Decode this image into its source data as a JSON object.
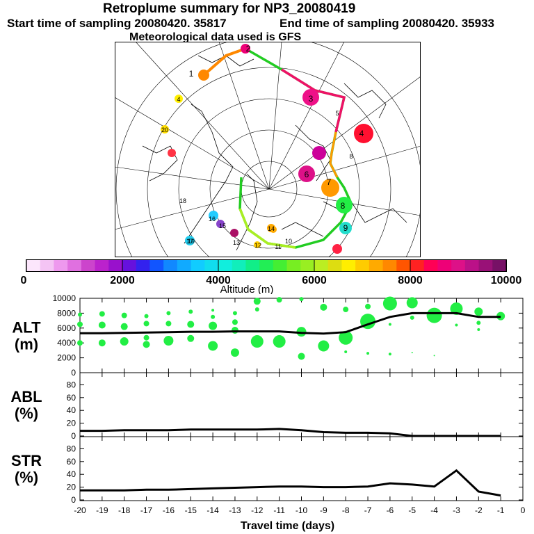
{
  "header": {
    "title": "Retroplume summary for NP3_20080419",
    "start_label": "Start time of sampling 20080420. 35817",
    "end_label": "End time of sampling 20080420. 35933",
    "met_label": "Meteorological data used is GFS"
  },
  "chart_data": [
    {
      "type": "scatter",
      "title": "Retroplume trajectory map (polar stereographic)",
      "path_points": [
        {
          "day": 1,
          "color": "#ff8800"
        },
        {
          "day": 2,
          "color": "#ee0077"
        },
        {
          "day": 3,
          "color": "#ee1188"
        },
        {
          "day": 4,
          "color": "#ff1030"
        },
        {
          "day": 5,
          "color": "#cc0099"
        },
        {
          "day": 6,
          "color": "#dd1188"
        },
        {
          "day": 7,
          "color": "#ff9900"
        },
        {
          "day": 8,
          "color": "#22ee44"
        },
        {
          "day": 9,
          "color": "#22ddcc"
        },
        {
          "day": 10,
          "color": "#ff2244"
        },
        {
          "day": 11,
          "color": "#ffaa00"
        },
        {
          "day": 12,
          "color": "#ffcc00"
        },
        {
          "day": 13,
          "color": "#aa1166"
        },
        {
          "day": 14,
          "color": "#ffaa00"
        },
        {
          "day": 15,
          "color": "#8844cc"
        },
        {
          "day": 16,
          "color": "#22ccff"
        },
        {
          "day": 17,
          "color": "#22ccee"
        },
        {
          "day": 18,
          "color": "#ff3344"
        },
        {
          "day": 19,
          "color": "#ffdd00"
        },
        {
          "day": 20,
          "color": "#ffee00"
        }
      ],
      "path_labels": [
        "1",
        "2",
        "3",
        "4",
        "6",
        "7",
        "8",
        "9",
        "10",
        "11",
        "12",
        "13",
        "14",
        "15",
        "16",
        "17",
        "18",
        "19",
        "20",
        "4",
        "5",
        "8"
      ]
    },
    {
      "type": "heatmap",
      "title": "Altitude (m) color scale",
      "colors": [
        "#fce6fc",
        "#f4c4f4",
        "#ee99ee",
        "#e070e0",
        "#cc44cc",
        "#bb22cc",
        "#9911cc",
        "#6611dd",
        "#3322ee",
        "#1155ff",
        "#1188ff",
        "#11aaff",
        "#11ccff",
        "#11ddee",
        "#11eedd",
        "#11eebb",
        "#11ee88",
        "#22ee55",
        "#44ee33",
        "#77ee22",
        "#99ee22",
        "#bbee22",
        "#dddd11",
        "#ffee00",
        "#ffcc00",
        "#ffaa00",
        "#ff8800",
        "#ff5500",
        "#ff2222",
        "#ff0055",
        "#ee0077",
        "#dd1188",
        "#bb1188",
        "#991177",
        "#771166"
      ],
      "range": [
        0,
        10000
      ],
      "tick_labels": [
        "0",
        "2000",
        "4000",
        "6000",
        "8000",
        "10000"
      ],
      "xlabel": "Altitude (m)"
    },
    {
      "type": "line",
      "ylabel_lines": [
        "ALT",
        "(m)"
      ],
      "ylim": [
        0,
        10000
      ],
      "yticks": [
        "0",
        "2000",
        "4000",
        "6000",
        "8000",
        "10000"
      ],
      "x": [
        -20,
        -19,
        -18,
        -17,
        -16,
        -15,
        -14,
        -13,
        -12,
        -11,
        -10,
        -9,
        -8,
        -7,
        -6,
        -5,
        -4,
        -3,
        -2,
        -1
      ],
      "values": [
        5300,
        5300,
        5350,
        5400,
        5450,
        5500,
        5500,
        5550,
        5550,
        5550,
        5350,
        5250,
        5450,
        6500,
        7500,
        8000,
        8000,
        8000,
        7500,
        7500
      ],
      "points": [
        {
          "x": -20,
          "y": 7800,
          "s": 3
        },
        {
          "x": -20,
          "y": 6500,
          "s": 4
        },
        {
          "x": -20,
          "y": 4000,
          "s": 4
        },
        {
          "x": -19,
          "y": 7900,
          "s": 4
        },
        {
          "x": -19,
          "y": 6400,
          "s": 5
        },
        {
          "x": -19,
          "y": 4000,
          "s": 5
        },
        {
          "x": -18,
          "y": 7700,
          "s": 4
        },
        {
          "x": -18,
          "y": 6200,
          "s": 5
        },
        {
          "x": -18,
          "y": 4200,
          "s": 6
        },
        {
          "x": -17,
          "y": 7600,
          "s": 3
        },
        {
          "x": -17,
          "y": 6600,
          "s": 4
        },
        {
          "x": -17,
          "y": 4700,
          "s": 4
        },
        {
          "x": -17,
          "y": 3800,
          "s": 5
        },
        {
          "x": -16,
          "y": 8000,
          "s": 3
        },
        {
          "x": -16,
          "y": 6600,
          "s": 4
        },
        {
          "x": -16,
          "y": 4300,
          "s": 7
        },
        {
          "x": -15,
          "y": 8200,
          "s": 3
        },
        {
          "x": -15,
          "y": 6500,
          "s": 5
        },
        {
          "x": -15,
          "y": 4600,
          "s": 5
        },
        {
          "x": -14,
          "y": 8400,
          "s": 2
        },
        {
          "x": -14,
          "y": 7500,
          "s": 3
        },
        {
          "x": -14,
          "y": 6300,
          "s": 6
        },
        {
          "x": -14,
          "y": 3600,
          "s": 7
        },
        {
          "x": -13,
          "y": 8000,
          "s": 3
        },
        {
          "x": -13,
          "y": 6800,
          "s": 4
        },
        {
          "x": -13,
          "y": 5700,
          "s": 5
        },
        {
          "x": -13,
          "y": 2700,
          "s": 6
        },
        {
          "x": -12,
          "y": 9600,
          "s": 5
        },
        {
          "x": -12,
          "y": 8500,
          "s": 3
        },
        {
          "x": -12,
          "y": 4200,
          "s": 9
        },
        {
          "x": -11,
          "y": 9800,
          "s": 4
        },
        {
          "x": -11,
          "y": 4200,
          "s": 9
        },
        {
          "x": -10,
          "y": 9900,
          "s": 3
        },
        {
          "x": -10,
          "y": 5500,
          "s": 7
        },
        {
          "x": -10,
          "y": 2200,
          "s": 5
        },
        {
          "x": -9,
          "y": 8800,
          "s": 5
        },
        {
          "x": -9,
          "y": 3600,
          "s": 8
        },
        {
          "x": -8,
          "y": 8500,
          "s": 4
        },
        {
          "x": -8,
          "y": 4700,
          "s": 10
        },
        {
          "x": -8,
          "y": 2800,
          "s": 2
        },
        {
          "x": -7,
          "y": 8900,
          "s": 4
        },
        {
          "x": -7,
          "y": 6900,
          "s": 11
        },
        {
          "x": -7,
          "y": 2600,
          "s": 2
        },
        {
          "x": -6,
          "y": 9300,
          "s": 10
        },
        {
          "x": -6,
          "y": 6500,
          "s": 2
        },
        {
          "x": -6,
          "y": 2500,
          "s": 2
        },
        {
          "x": -5,
          "y": 9400,
          "s": 8
        },
        {
          "x": -5,
          "y": 7400,
          "s": 3
        },
        {
          "x": -5,
          "y": 2700,
          "s": 1
        },
        {
          "x": -4,
          "y": 7700,
          "s": 11
        },
        {
          "x": -4,
          "y": 2300,
          "s": 1
        },
        {
          "x": -3,
          "y": 8600,
          "s": 9
        },
        {
          "x": -3,
          "y": 6400,
          "s": 2
        },
        {
          "x": -2,
          "y": 8200,
          "s": 6
        },
        {
          "x": -2,
          "y": 6700,
          "s": 3
        },
        {
          "x": -2,
          "y": 5800,
          "s": 2
        },
        {
          "x": -1,
          "y": 7600,
          "s": 6
        }
      ]
    },
    {
      "type": "line",
      "ylabel_lines": [
        "ABL",
        "(%)"
      ],
      "ylim": [
        0,
        90
      ],
      "yticks": [
        "0",
        "20",
        "40",
        "60",
        "80"
      ],
      "x": [
        -20,
        -19,
        -18,
        -17,
        -16,
        -15,
        -14,
        -13,
        -12,
        -11,
        -10,
        -9,
        -8,
        -7,
        -6,
        -5,
        -4,
        -3,
        -2,
        -1
      ],
      "values": [
        8,
        8,
        9,
        9,
        9,
        10,
        10,
        10,
        10,
        11,
        9,
        6,
        5,
        5,
        4,
        0,
        0,
        0,
        0,
        0
      ]
    },
    {
      "type": "line",
      "ylabel_lines": [
        "STR",
        "(%)"
      ],
      "ylim": [
        0,
        90
      ],
      "yticks": [
        "0",
        "20",
        "40",
        "60",
        "80"
      ],
      "x": [
        -20,
        -19,
        -18,
        -17,
        -16,
        -15,
        -14,
        -13,
        -12,
        -11,
        -10,
        -9,
        -8,
        -7,
        -6,
        -5,
        -4,
        -3,
        -2,
        -1
      ],
      "values": [
        15,
        15,
        15,
        16,
        16,
        17,
        18,
        19,
        20,
        21,
        21,
        20,
        20,
        21,
        26,
        24,
        21,
        46,
        13,
        7
      ],
      "xlabel": "Travel time (days)",
      "xticks": [
        "-20",
        "-19",
        "-18",
        "-17",
        "-16",
        "-15",
        "-14",
        "-13",
        "-12",
        "-11",
        "-10",
        "-9",
        "-8",
        "-7",
        "-6",
        "-5",
        "-4",
        "-3",
        "-2",
        "-1",
        "0"
      ]
    }
  ]
}
